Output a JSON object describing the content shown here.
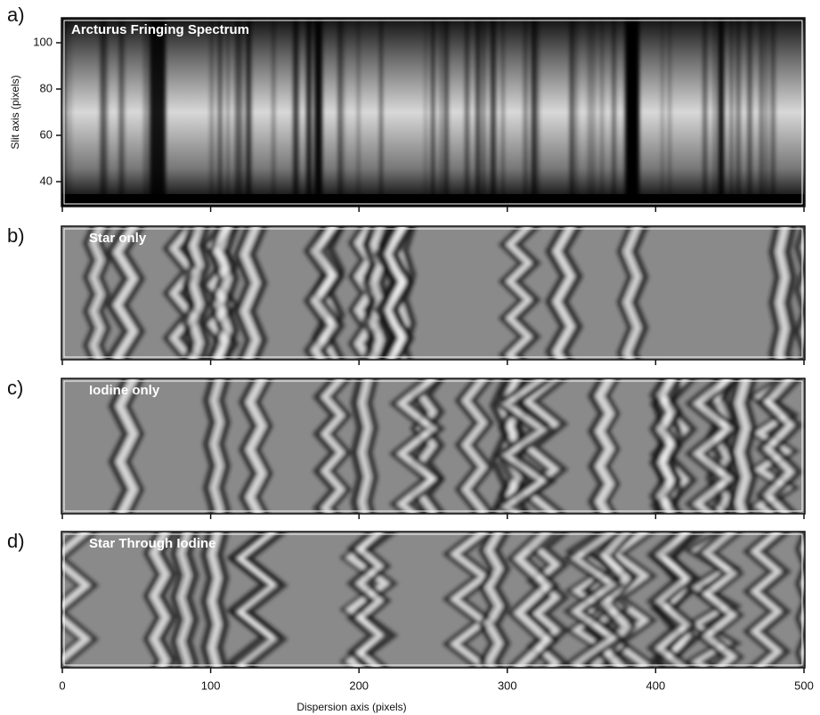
{
  "panels": [
    {
      "label": "a)",
      "title": "Arcturus Fringing Spectrum"
    },
    {
      "label": "b)",
      "title": "Star only"
    },
    {
      "label": "c)",
      "title": "Iodine only"
    },
    {
      "label": "d)",
      "title": "Star Through Iodine"
    }
  ],
  "y_axis": {
    "label": "Slit axis (pixels)",
    "ticks": [
      40,
      60,
      80,
      100
    ],
    "lim": [
      30,
      110
    ]
  },
  "x_axis": {
    "label": "Dispersion axis (pixels)",
    "ticks": [
      0,
      100,
      200,
      300,
      400,
      500
    ],
    "lim": [
      0,
      500
    ]
  }
}
